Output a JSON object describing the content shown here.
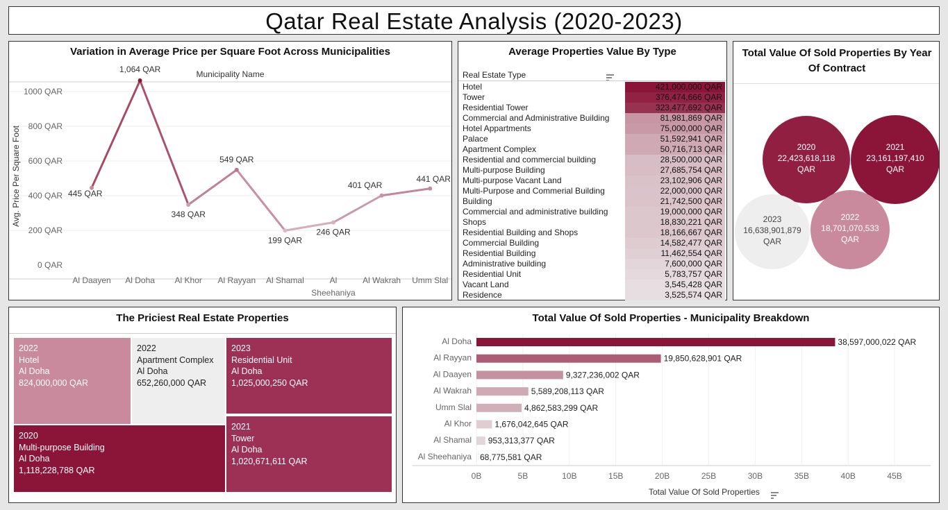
{
  "dashboard_title": "Qatar Real Estate Analysis (2020-2023)",
  "line_chart": {
    "title": "Variation in Average Price per Square Foot Across Municipalities",
    "header": "Municipality Name",
    "ylabel": "Avg. Price Per Square Foot",
    "y_ticks": [
      "0 QAR",
      "200 QAR",
      "400 QAR",
      "600 QAR",
      "800 QAR",
      "1000 QAR"
    ],
    "x_ticks": [
      "Al Daayen",
      "Al Doha",
      "Al Khor",
      "Al Rayyan",
      "Al Shamal",
      "Al",
      "Al Wakrah",
      "Umm Slal"
    ],
    "x_tick_extra": "Sheehaniya",
    "point_labels": [
      "445 QAR",
      "1,064 QAR",
      "348 QAR",
      "549 QAR",
      "199 QAR",
      "246 QAR",
      "401 QAR",
      "441 QAR"
    ]
  },
  "type_table": {
    "title": "Average Properties Value By Type",
    "column_header": "Real Estate Type",
    "rows": [
      {
        "type": "Hotel",
        "value": "421,000,000 QAR"
      },
      {
        "type": "Tower",
        "value": "376,474,666 QAR"
      },
      {
        "type": "Residential Tower",
        "value": "323,477,692 QAR"
      },
      {
        "type": "Commercial and Administrative Building",
        "value": "81,981,869 QAR"
      },
      {
        "type": "Hotel Appartments",
        "value": "75,000,000 QAR"
      },
      {
        "type": "Palace",
        "value": "51,592,941 QAR"
      },
      {
        "type": "Apartment Complex",
        "value": "50,716,713 QAR"
      },
      {
        "type": "Residential and commercial building",
        "value": "28,500,000 QAR"
      },
      {
        "type": "Multi-purpose Building",
        "value": "27,685,754 QAR"
      },
      {
        "type": "Multi-purpose Vacant Land",
        "value": "23,102,906 QAR"
      },
      {
        "type": "Multi-Purpose and Commerial Building",
        "value": "22,000,000 QAR"
      },
      {
        "type": "Building",
        "value": "21,742,500 QAR"
      },
      {
        "type": "Commercial and administrative building",
        "value": "19,000,000 QAR"
      },
      {
        "type": "Shops",
        "value": "18,830,221 QAR"
      },
      {
        "type": "Residential Building and Shops",
        "value": "18,166,667 QAR"
      },
      {
        "type": "Commercial Building",
        "value": "14,582,477 QAR"
      },
      {
        "type": "Residential Building",
        "value": "11,462,554 QAR"
      },
      {
        "type": "Administrative building",
        "value": "7,600,000 QAR"
      },
      {
        "type": "Residential Unit",
        "value": "5,783,757 QAR"
      },
      {
        "type": "Vacant Land",
        "value": "3,545,428 QAR"
      },
      {
        "type": "Residence",
        "value": "3,525,574 QAR"
      }
    ]
  },
  "bubble_chart": {
    "title": "Total Value Of Sold Properties By Year Of Contract",
    "bubbles": [
      {
        "year": "2020",
        "value": "22,423,618,118",
        "unit": "QAR"
      },
      {
        "year": "2021",
        "value": "23,161,197,410",
        "unit": "QAR"
      },
      {
        "year": "2023",
        "value": "16,638,901,879",
        "unit": "QAR"
      },
      {
        "year": "2022",
        "value": "18,701,070,533",
        "unit": "QAR"
      }
    ]
  },
  "treemap": {
    "title": "The Priciest Real Estate Properties",
    "tiles": [
      {
        "year": "2022",
        "type": "Hotel",
        "municipality": "Al Doha",
        "value": "824,000,000 QAR"
      },
      {
        "year": "2022",
        "type": "Apartment Complex",
        "municipality": "Al Doha",
        "value": "652,260,000 QAR"
      },
      {
        "year": "2023",
        "type": "Residential Unit",
        "municipality": "Al Doha",
        "value": "1,025,000,250 QAR"
      },
      {
        "year": "2020",
        "type": "Multi-purpose Building",
        "municipality": "Al Doha",
        "value": "1,118,228,788 QAR"
      },
      {
        "year": "2021",
        "type": "Tower",
        "municipality": "Al Doha",
        "value": "1,020,671,611 QAR"
      }
    ]
  },
  "bar_chart": {
    "title": "Total Value Of Sold Properties - Municipality Breakdown",
    "xlabel": "Total Value Of Sold Properties",
    "x_ticks": [
      "0B",
      "5B",
      "10B",
      "15B",
      "20B",
      "25B",
      "30B",
      "35B",
      "40B",
      "45B"
    ],
    "rows": [
      {
        "name": "Al Doha",
        "label": "38,597,000,022 QAR"
      },
      {
        "name": "Al Rayyan",
        "label": "19,850,628,901 QAR"
      },
      {
        "name": "Al Daayen",
        "label": "9,327,236,002 QAR"
      },
      {
        "name": "Al Wakrah",
        "label": "5,589,208,113 QAR"
      },
      {
        "name": "Umm Slal",
        "label": "4,862,583,299 QAR"
      },
      {
        "name": "Al Khor",
        "label": "1,676,042,645 QAR"
      },
      {
        "name": "Al Shamal",
        "label": "953,313,377 QAR"
      },
      {
        "name": "Al Sheehaniya",
        "label": "68,775,581 QAR"
      }
    ]
  },
  "chart_data": [
    {
      "type": "line",
      "title": "Variation in Average Price per Square Foot Across Municipalities",
      "xlabel": "Municipality Name",
      "ylabel": "Avg. Price Per Square Foot",
      "categories": [
        "Al Daayen",
        "Al Doha",
        "Al Khor",
        "Al Rayyan",
        "Al Shamal",
        "Al Sheehaniya",
        "Al Wakrah",
        "Umm Slal"
      ],
      "values": [
        445,
        1064,
        348,
        549,
        199,
        246,
        401,
        441
      ],
      "ylim": [
        0,
        1100
      ],
      "grid": true
    },
    {
      "type": "table",
      "title": "Average Properties Value By Type",
      "categories": [
        "Hotel",
        "Tower",
        "Residential Tower",
        "Commercial and Administrative Building",
        "Hotel Appartments",
        "Palace",
        "Apartment Complex",
        "Residential and commercial building",
        "Multi-purpose Building",
        "Multi-purpose Vacant Land",
        "Multi-Purpose and Commerial Building",
        "Building",
        "Commercial and administrative building",
        "Shops",
        "Residential Building and Shops",
        "Commercial Building",
        "Residential Building",
        "Administrative building",
        "Residential Unit",
        "Vacant Land",
        "Residence"
      ],
      "values": [
        421000000,
        376474666,
        323477692,
        81981869,
        75000000,
        51592941,
        50716713,
        28500000,
        27685754,
        23102906,
        22000000,
        21742500,
        19000000,
        18830221,
        18166667,
        14582477,
        11462554,
        7600000,
        5783757,
        3545428,
        3525574
      ]
    },
    {
      "type": "scatter",
      "title": "Total Value Of Sold Properties By Year Of Contract",
      "categories": [
        "2020",
        "2021",
        "2023",
        "2022"
      ],
      "values": [
        22423618118,
        23161197410,
        16638901879,
        18701070533
      ]
    },
    {
      "type": "heatmap",
      "title": "The Priciest Real Estate Properties",
      "categories": [
        "2022 Hotel",
        "2022 Apartment Complex",
        "2023 Residential Unit",
        "2020 Multi-purpose Building",
        "2021 Tower"
      ],
      "values": [
        824000000,
        652260000,
        1025000250,
        1118228788,
        1020671611
      ]
    },
    {
      "type": "bar",
      "title": "Total Value Of Sold Properties - Municipality Breakdown",
      "xlabel": "Total Value Of Sold Properties",
      "categories": [
        "Al Doha",
        "Al Rayyan",
        "Al Daayen",
        "Al Wakrah",
        "Umm Slal",
        "Al Khor",
        "Al Shamal",
        "Al Sheehaniya"
      ],
      "values": [
        38597000022,
        19850628901,
        9327236002,
        5589208113,
        4862583299,
        1676042645,
        953313377,
        68775581
      ],
      "xlim": [
        0,
        45000000000
      ],
      "grid": true
    }
  ],
  "colors": {
    "dark": "#8b1538",
    "mid": "#9c3155",
    "light": "#c98a9d",
    "pale": "#eeeeee"
  }
}
